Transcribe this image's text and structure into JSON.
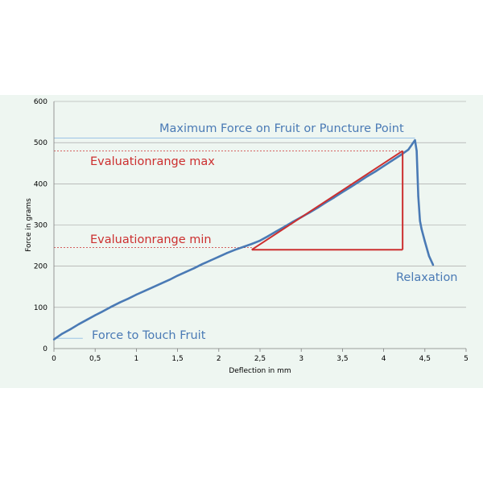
{
  "chart_data": {
    "type": "line",
    "xlabel": "Deflection in mm",
    "ylabel": "Force in grams",
    "xlim": [
      0,
      5
    ],
    "ylim": [
      0,
      600
    ],
    "x_ticks": [
      "0",
      "0,5",
      "1",
      "1,5",
      "2",
      "2,5",
      "3",
      "3,5",
      "4",
      "4,5",
      "5"
    ],
    "y_ticks": [
      "0",
      "100",
      "200",
      "300",
      "400",
      "500",
      "600"
    ],
    "grid": "horizontal",
    "series": [
      {
        "color": "#4a7ab5",
        "x": [
          0,
          0.1,
          0.2,
          0.3,
          0.4,
          0.5,
          0.6,
          0.7,
          0.8,
          0.9,
          1.0,
          1.1,
          1.2,
          1.3,
          1.4,
          1.5,
          1.6,
          1.7,
          1.8,
          1.9,
          2.0,
          2.1,
          2.2,
          2.3,
          2.4,
          2.5,
          2.6,
          2.7,
          2.8,
          2.9,
          3.0,
          3.1,
          3.2,
          3.3,
          3.4,
          3.5,
          3.6,
          3.7,
          3.8,
          3.9,
          4.0,
          4.1,
          4.2,
          4.3,
          4.38,
          4.4,
          4.42,
          4.44,
          4.46,
          4.5,
          4.55,
          4.6
        ],
        "y": [
          22,
          36,
          47,
          59,
          70,
          81,
          91,
          102,
          112,
          121,
          131,
          140,
          149,
          158,
          167,
          177,
          186,
          195,
          205,
          214,
          223,
          232,
          240,
          247,
          254,
          262,
          273,
          285,
          296,
          308,
          319,
          330,
          342,
          355,
          367,
          380,
          392,
          405,
          418,
          430,
          443,
          456,
          469,
          483,
          506,
          480,
          370,
          310,
          290,
          260,
          225,
          203
        ]
      }
    ],
    "evaluation": {
      "color": "#cc2f2f",
      "min": {
        "x": 2.4,
        "y": 240
      },
      "max": {
        "x": 4.23,
        "y": 480
      }
    },
    "annotations": {
      "max_force": {
        "text": "Maximum Force on Fruit or Puncture Point",
        "y": 511,
        "color": "#4a7ab5"
      },
      "eval_max": {
        "text": "Evaluationrange max",
        "y": 480,
        "color": "#cc2f2f"
      },
      "eval_min": {
        "text": "Evaluationrange min",
        "y": 245,
        "color": "#cc2f2f"
      },
      "relaxation": {
        "text": "Relaxation",
        "color": "#4a7ab5"
      },
      "touch": {
        "text": "Force to Touch Fruit",
        "y": 25,
        "color": "#4a7ab5"
      }
    }
  }
}
